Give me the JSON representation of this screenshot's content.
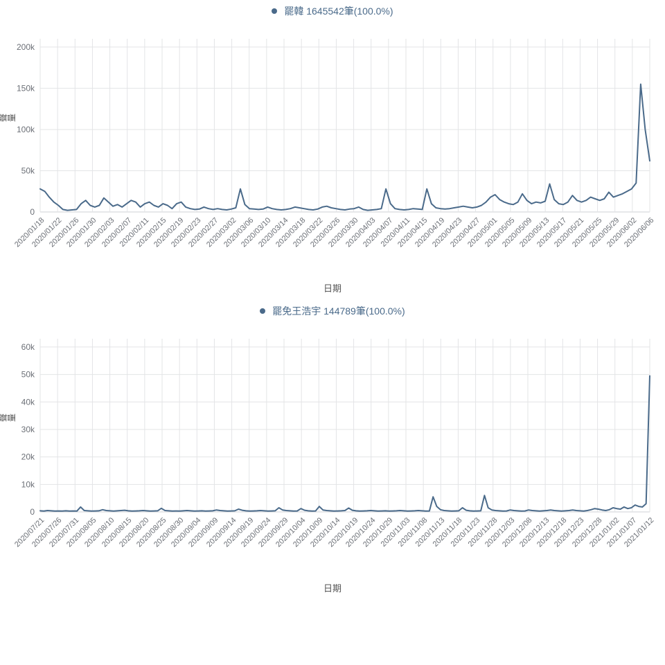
{
  "colors": {
    "line": "#4a6a8a",
    "grid": "#e3e4e6",
    "axis": "#cfd1d4",
    "tick_text": "#6b6f76",
    "legend_text": "#4a6a8a",
    "axis_title": "#555555",
    "background": "#ffffff"
  },
  "fonts": {
    "tick_fontsize": 11,
    "axis_title_fontsize": 13,
    "legend_fontsize": 14,
    "line_width": 2
  },
  "chart1": {
    "type": "line",
    "legend_label": "罷韓 1645542筆(100.0%)",
    "x_axis_title": "日期",
    "y_axis_title": "聲量",
    "ylim": [
      0,
      210000
    ],
    "yticks": [
      0,
      50000,
      100000,
      150000,
      200000
    ],
    "ytick_labels": [
      "0",
      "50k",
      "100k",
      "150k",
      "200k"
    ],
    "xtick_labels": [
      "2020/01/18",
      "2020/01/22",
      "2020/01/26",
      "2020/01/30",
      "2020/02/03",
      "2020/02/07",
      "2020/02/11",
      "2020/02/15",
      "2020/02/19",
      "2020/02/23",
      "2020/02/27",
      "2020/03/02",
      "2020/03/06",
      "2020/03/10",
      "2020/03/14",
      "2020/03/18",
      "2020/03/22",
      "2020/03/26",
      "2020/03/30",
      "2020/04/03",
      "2020/04/07",
      "2020/04/11",
      "2020/04/15",
      "2020/04/19",
      "2020/04/23",
      "2020/04/27",
      "2020/05/01",
      "2020/05/05",
      "2020/05/09",
      "2020/05/13",
      "2020/05/17",
      "2020/05/21",
      "2020/05/25",
      "2020/05/29",
      "2020/06/02",
      "2020/06/06"
    ],
    "values": [
      28000,
      25000,
      18000,
      12000,
      8000,
      3000,
      2000,
      2500,
      3000,
      10000,
      14000,
      8000,
      6000,
      8000,
      17000,
      12000,
      7000,
      9000,
      6000,
      10000,
      14000,
      12000,
      6000,
      10000,
      12000,
      8000,
      6000,
      10000,
      8000,
      4000,
      10000,
      12000,
      6000,
      4000,
      3000,
      3500,
      6000,
      4000,
      3000,
      4000,
      3000,
      2500,
      3500,
      5000,
      28000,
      9000,
      4000,
      3500,
      3000,
      3500,
      6000,
      4000,
      3000,
      2500,
      3000,
      4000,
      6000,
      5000,
      4000,
      3000,
      2500,
      3500,
      6000,
      7000,
      5000,
      4000,
      3000,
      2500,
      3500,
      4000,
      6000,
      3000,
      2000,
      2500,
      3000,
      4000,
      28000,
      10000,
      4000,
      3000,
      2500,
      3000,
      4000,
      3500,
      3000,
      28000,
      10000,
      5000,
      4000,
      3500,
      4000,
      5000,
      6000,
      7000,
      6000,
      5000,
      6000,
      8000,
      12000,
      18000,
      21000,
      15000,
      12000,
      10000,
      9000,
      12000,
      22000,
      14000,
      10000,
      12000,
      11000,
      13000,
      34000,
      15000,
      10000,
      9000,
      12000,
      20000,
      14000,
      12000,
      14000,
      18000,
      16000,
      14000,
      16000,
      24000,
      18000,
      20000,
      22000,
      25000,
      28000,
      35000,
      155000,
      100000,
      62000
    ],
    "marker_style": "circle",
    "marker_size": 3
  },
  "chart2": {
    "type": "line",
    "legend_label": "罷免王浩宇 144789筆(100.0%)",
    "x_axis_title": "日期",
    "y_axis_title": "聲量",
    "ylim": [
      0,
      63000
    ],
    "yticks": [
      0,
      10000,
      20000,
      30000,
      40000,
      50000,
      60000
    ],
    "ytick_labels": [
      "0",
      "10k",
      "20k",
      "30k",
      "40k",
      "50k",
      "60k"
    ],
    "xtick_labels": [
      "2020/07/21",
      "2020/07/26",
      "2020/07/31",
      "2020/08/05",
      "2020/08/10",
      "2020/08/15",
      "2020/08/20",
      "2020/08/25",
      "2020/08/30",
      "2020/09/04",
      "2020/09/09",
      "2020/09/14",
      "2020/09/19",
      "2020/09/24",
      "2020/09/29",
      "2020/10/04",
      "2020/10/09",
      "2020/10/14",
      "2020/10/19",
      "2020/10/24",
      "2020/10/29",
      "2020/11/03",
      "2020/11/08",
      "2020/11/13",
      "2020/11/18",
      "2020/11/23",
      "2020/11/28",
      "2020/12/03",
      "2020/12/08",
      "2020/12/13",
      "2020/12/18",
      "2020/12/23",
      "2020/12/28",
      "2021/01/02",
      "2021/01/07",
      "2021/01/12"
    ],
    "values": [
      400,
      300,
      500,
      400,
      300,
      350,
      300,
      400,
      300,
      350,
      300,
      1800,
      500,
      400,
      300,
      350,
      400,
      800,
      500,
      400,
      300,
      400,
      500,
      600,
      400,
      300,
      350,
      400,
      500,
      400,
      300,
      350,
      400,
      1300,
      500,
      400,
      300,
      350,
      300,
      400,
      500,
      400,
      300,
      350,
      400,
      300,
      350,
      400,
      700,
      500,
      400,
      300,
      350,
      400,
      1000,
      600,
      400,
      300,
      350,
      400,
      500,
      400,
      300,
      350,
      400,
      1500,
      700,
      500,
      400,
      300,
      350,
      1200,
      600,
      400,
      300,
      350,
      2000,
      700,
      500,
      400,
      300,
      350,
      400,
      500,
      1400,
      600,
      400,
      300,
      350,
      400,
      500,
      400,
      300,
      350,
      400,
      300,
      350,
      400,
      500,
      400,
      300,
      350,
      400,
      500,
      400,
      300,
      350,
      5500,
      2000,
      800,
      500,
      400,
      300,
      350,
      400,
      1500,
      600,
      400,
      300,
      350,
      400,
      6000,
      1500,
      700,
      500,
      400,
      300,
      350,
      700,
      500,
      400,
      300,
      350,
      700,
      500,
      400,
      300,
      400,
      500,
      700,
      500,
      400,
      300,
      400,
      500,
      700,
      500,
      400,
      300,
      500,
      800,
      1200,
      1000,
      700,
      500,
      800,
      1500,
      1200,
      1000,
      1800,
      1200,
      1500,
      2500,
      2000,
      1800,
      3000,
      49500
    ],
    "marker_style": "circle",
    "marker_size": 3
  }
}
